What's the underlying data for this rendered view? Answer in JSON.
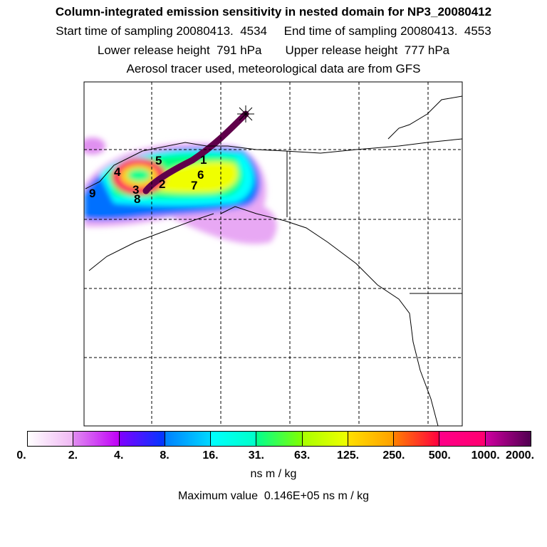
{
  "header": {
    "title": "Column-integrated emission sensitivity in nested domain for NP3_20080412",
    "line2": "Start time of sampling 20080413.  4534     End time of sampling 20080413.  4553",
    "line3": "Lower release height  791 hPa       Upper release height  777 hPa",
    "line4": "Aerosol tracer used, meteorological data are from GFS"
  },
  "map": {
    "release_marker_icon": "asterisk-icon",
    "cluster_labels": [
      "1",
      "2",
      "3",
      "4",
      "5",
      "6",
      "7",
      "8",
      "9"
    ]
  },
  "colorbar": {
    "ticks": [
      "0.",
      "2.",
      "4.",
      "8.",
      "16.",
      "31.",
      "63.",
      "125.",
      "250.",
      "500.",
      "1000.",
      "2000."
    ],
    "segment_colors": [
      [
        "#ffffff",
        "#f0b8f4"
      ],
      [
        "#e08cf0",
        "#c000f8"
      ],
      [
        "#8000ff",
        "#0038ff"
      ],
      [
        "#0080ff",
        "#00d8ff"
      ],
      [
        "#00ffff",
        "#00ffc8"
      ],
      [
        "#00ff90",
        "#80ff00"
      ],
      [
        "#a8ff00",
        "#f0ff00"
      ],
      [
        "#ffe000",
        "#ffa000"
      ],
      [
        "#ff8000",
        "#ff0040"
      ],
      [
        "#ff0088",
        "#ff0070"
      ],
      [
        "#d000a0",
        "#500050"
      ]
    ],
    "units": "ns m / kg",
    "max_text": "Maximum value  0.146E+05 ns m / kg"
  }
}
